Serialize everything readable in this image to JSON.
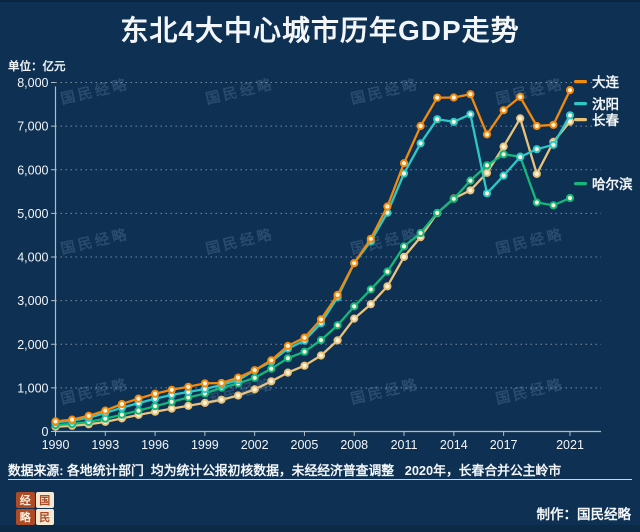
{
  "header": {
    "title": "东北4大中心城市历年GDP走势",
    "unit_label": "单位：亿元"
  },
  "watermark": {
    "text": "国民经略"
  },
  "chart_data": {
    "type": "line",
    "title": "东北4大中心城市历年GDP走势",
    "unit": "亿元",
    "x": [
      1990,
      1991,
      1992,
      1993,
      1994,
      1995,
      1996,
      1997,
      1998,
      1999,
      2000,
      2001,
      2002,
      2003,
      2004,
      2005,
      2006,
      2007,
      2008,
      2009,
      2010,
      2011,
      2012,
      2013,
      2014,
      2015,
      2016,
      2017,
      2018,
      2019,
      2020,
      2021
    ],
    "x_tick_labels": [
      "1990",
      "1993",
      "1996",
      "1999",
      "2002",
      "2005",
      "2008",
      "2011",
      "2014",
      "2017",
      "2021"
    ],
    "ylim": [
      0,
      8000
    ],
    "y_ticks": [
      0,
      1000,
      2000,
      3000,
      4000,
      5000,
      6000,
      7000,
      8000
    ],
    "y_tick_labels": [
      "0",
      "1,000",
      "2,000",
      "3,000",
      "4,000",
      "5,000",
      "6,000",
      "7,000",
      "8,000"
    ],
    "grid": "horizontal-dotted",
    "legend_position": "right",
    "marker_fill": "#fff3dc",
    "series": [
      {
        "name": "大连",
        "color": "#f18a0d",
        "values": [
          232,
          272,
          361,
          480,
          630,
          755,
          866,
          955,
          1024,
          1102,
          1111,
          1236,
          1406,
          1633,
          1962,
          2152,
          2570,
          3131,
          3858,
          4418,
          5158,
          6151,
          7003,
          7651,
          7656,
          7732,
          6810,
          7364,
          7669,
          7002,
          7030,
          7826
        ]
      },
      {
        "name": "沈阳",
        "color": "#2ec8c6",
        "values": [
          213,
          245,
          315,
          425,
          545,
          650,
          750,
          840,
          905,
          975,
          1068,
          1175,
          1400,
          1602,
          1900,
          2084,
          2483,
          3074,
          3860,
          4359,
          5015,
          5915,
          6607,
          7159,
          7099,
          7272,
          5460,
          5865,
          6292,
          6470,
          6572,
          7249
        ]
      },
      {
        "name": "长春",
        "color": "#e8c37c",
        "values": [
          110,
          130,
          165,
          220,
          300,
          380,
          455,
          525,
          590,
          655,
          730,
          825,
          965,
          1150,
          1350,
          1509,
          1741,
          2089,
          2588,
          2919,
          3329,
          4003,
          4457,
          5003,
          5342,
          5530,
          5929,
          6530,
          7176,
          5904,
          6638,
          7103
        ]
      },
      {
        "name": "哈尔滨",
        "color": "#15b77b",
        "values": [
          150,
          175,
          220,
          295,
          385,
          480,
          580,
          680,
          780,
          870,
          1003,
          1100,
          1232,
          1440,
          1680,
          1830,
          2094,
          2437,
          2868,
          3258,
          3665,
          4243,
          4550,
          5010,
          5333,
          5751,
          6102,
          6355,
          6301,
          5249,
          5184,
          5352
        ]
      }
    ]
  },
  "footer": {
    "source_note": "数据来源: 各地统计部门  均为统计公报初核数据，未经经济普查调整   2020年，长春合并公主岭市",
    "credit": "制作：国民经略",
    "logo_chars": [
      "经",
      "国",
      "略",
      "民"
    ]
  }
}
